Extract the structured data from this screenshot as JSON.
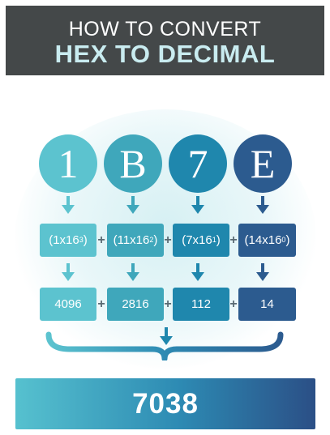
{
  "header": {
    "line1": "HOW TO CONVERT",
    "line2": "HEX TO DECIMAL"
  },
  "digits": [
    "1",
    "B",
    "7",
    "E"
  ],
  "expressions": [
    {
      "prefix": "(1x16",
      "exp": "3",
      "suffix": ")"
    },
    {
      "prefix": "(11x16",
      "exp": "2",
      "suffix": ")"
    },
    {
      "prefix": "(7x16",
      "exp": "1",
      "suffix": ")"
    },
    {
      "prefix": "(14x16",
      "exp": "0",
      "suffix": ")"
    }
  ],
  "values": [
    "4096",
    "2816",
    "112",
    "14"
  ],
  "operator": "+",
  "result": "7038",
  "colors": {
    "header_bg": "#444849",
    "c1": "#5cc3cf",
    "c2": "#3fa7bb",
    "c3": "#1f87ad",
    "c4": "#2c5b8f"
  }
}
